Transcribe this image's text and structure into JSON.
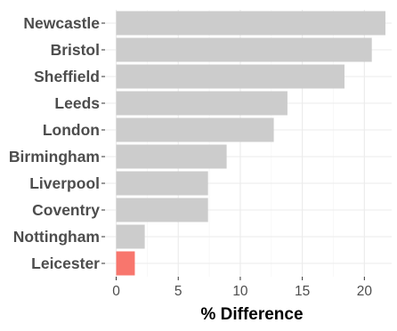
{
  "chart_data": {
    "type": "bar",
    "orientation": "horizontal",
    "categories": [
      "Newcastle",
      "Bristol",
      "Sheffield",
      "Leeds",
      "London",
      "Birmingham",
      "Liverpool",
      "Coventry",
      "Nottingham",
      "Leicester"
    ],
    "values": [
      21.7,
      20.6,
      18.4,
      13.8,
      12.7,
      8.9,
      7.4,
      7.4,
      2.3,
      1.5
    ],
    "highlight": "Leicester",
    "xlabel": "% Difference",
    "ylabel": "",
    "xlim": [
      -0.9,
      22.2
    ],
    "xticks": [
      0,
      5,
      10,
      15,
      20
    ],
    "grid": true,
    "legend": "none",
    "colors": {
      "bar": "#cccccc",
      "highlight": "#f8766d",
      "grid_major": "#ebebeb",
      "grid_minor": "#f4f4f4",
      "text": "#4d4d4d",
      "tick": "#333333"
    }
  }
}
